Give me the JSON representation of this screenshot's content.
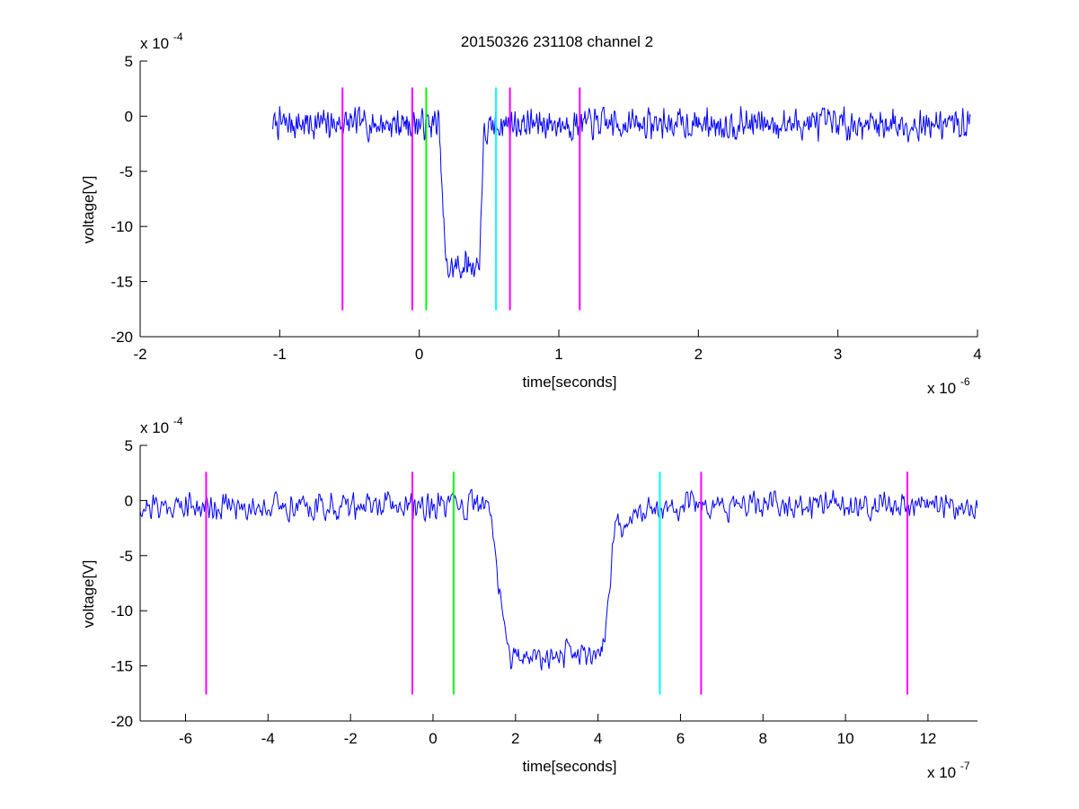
{
  "figure": {
    "title": "20150326 231108 channel 2"
  },
  "chart_data": [
    {
      "type": "line",
      "xlabel": "time[seconds]",
      "ylabel": "voltage[V]",
      "xlim": [
        -2,
        4
      ],
      "ylim": [
        -20,
        5
      ],
      "xticks": [
        -2,
        -1,
        0,
        1,
        2,
        3,
        4
      ],
      "yticks": [
        -20,
        -15,
        -10,
        -5,
        0,
        5
      ],
      "xticklabels": [
        "-2",
        "-1",
        "0",
        "1",
        "2",
        "3",
        "4"
      ],
      "yticklabels": [
        "-20",
        "-15",
        "-10",
        "-5",
        "0",
        "5"
      ],
      "x_exponent_base": "x 10",
      "x_exponent": "-6",
      "y_exponent_base": "x 10",
      "y_exponent": "-4",
      "grid": false,
      "trace": {
        "color": "#0000ff",
        "x_range": [
          -1.05,
          3.95
        ],
        "baseline": -0.7,
        "noise_amplitude": 1.2,
        "pulse": {
          "x_start": 0.14,
          "x_end": 0.43,
          "x_recover": 0.55,
          "low_level": -14.0,
          "recover_level": -2.0
        }
      },
      "markers": [
        {
          "x": -0.55,
          "color": "#ff00ff"
        },
        {
          "x": -0.05,
          "color": "#ff00ff"
        },
        {
          "x": 0.05,
          "color": "#00ff00"
        },
        {
          "x": 0.55,
          "color": "#00ffff"
        },
        {
          "x": 0.65,
          "color": "#ff00ff"
        },
        {
          "x": 1.15,
          "color": "#ff00ff"
        }
      ],
      "marker_y_range": [
        -17.6,
        2.6
      ]
    },
    {
      "type": "line",
      "xlabel": "time[seconds]",
      "ylabel": "voltage[V]",
      "xlim": [
        -7.1,
        13.2
      ],
      "ylim": [
        -20,
        5
      ],
      "xticks": [
        -6,
        -4,
        -2,
        0,
        2,
        4,
        6,
        8,
        10,
        12
      ],
      "yticks": [
        -20,
        -15,
        -10,
        -5,
        0,
        5
      ],
      "xticklabels": [
        "-6",
        "-4",
        "-2",
        "0",
        "2",
        "4",
        "6",
        "8",
        "10",
        "12"
      ],
      "yticklabels": [
        "-20",
        "-15",
        "-10",
        "-5",
        "0",
        "5"
      ],
      "x_exponent_base": "x 10",
      "x_exponent": "-7",
      "y_exponent_base": "x 10",
      "y_exponent": "-4",
      "grid": false,
      "trace": {
        "color": "#0000ff",
        "x_range": [
          -7.1,
          13.2
        ],
        "baseline": -0.5,
        "noise_amplitude": 1.1,
        "pulse": {
          "x_start": 1.35,
          "x_end": 4.1,
          "x_recover": 5.4,
          "low_level": -14.3,
          "recover_level": -2.2
        }
      },
      "markers": [
        {
          "x": -5.5,
          "color": "#ff00ff"
        },
        {
          "x": -0.5,
          "color": "#ff00ff"
        },
        {
          "x": 0.5,
          "color": "#00ff00"
        },
        {
          "x": 5.5,
          "color": "#00ffff"
        },
        {
          "x": 6.5,
          "color": "#ff00ff"
        },
        {
          "x": 11.5,
          "color": "#ff00ff"
        }
      ],
      "marker_y_range": [
        -17.6,
        2.6
      ]
    }
  ]
}
